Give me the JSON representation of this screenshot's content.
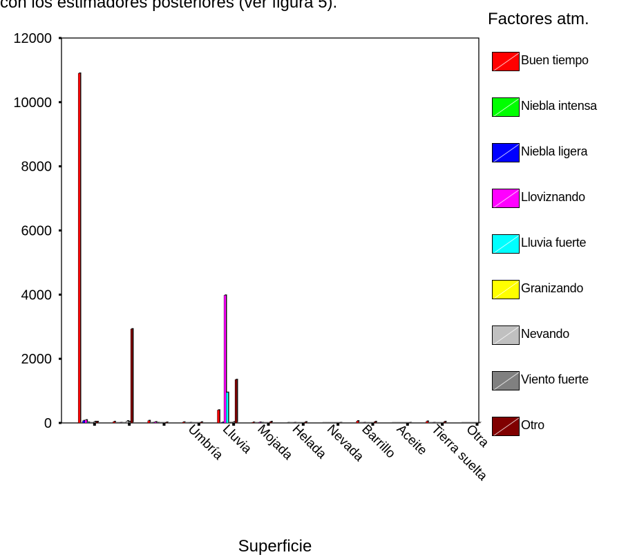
{
  "header": {
    "cut_text": "con los estimadores posteriores (ver figura 5)."
  },
  "legend": {
    "title": "Factores atm.",
    "items": [
      {
        "label": "Buen tiempo",
        "color": "#ff0000"
      },
      {
        "label": "Niebla intensa",
        "color": "#00ff00"
      },
      {
        "label": "Niebla ligera",
        "color": "#0000ff"
      },
      {
        "label": "Lloviznando",
        "color": "#ff00ff"
      },
      {
        "label": "Lluvia fuerte",
        "color": "#00ffff"
      },
      {
        "label": "Granizando",
        "color": "#ffff00"
      },
      {
        "label": "Nevando",
        "color": "#c0c0c0"
      },
      {
        "label": "Viento fuerte",
        "color": "#808080"
      },
      {
        "label": "Otro",
        "color": "#800000"
      }
    ]
  },
  "chart_data": {
    "type": "bar",
    "title": "",
    "xlabel": "Superficie",
    "ylabel": "",
    "ylim": [
      0,
      12000
    ],
    "y_ticks": [
      0,
      2000,
      4000,
      6000,
      8000,
      10000,
      12000
    ],
    "grid": false,
    "legend_placement": "right",
    "categories": [
      "",
      "",
      "",
      "Umbría",
      "Lluvia",
      "Mojada",
      "Helada",
      "Nevada",
      "Barrillo",
      "Aceite",
      "Tierra suelta",
      "Otra"
    ],
    "series": [
      {
        "name": "Buen tiempo",
        "values": [
          10900,
          40,
          70,
          25,
          400,
          20,
          8,
          5,
          60,
          5,
          50,
          5
        ]
      },
      {
        "name": "Niebla intensa",
        "values": [
          5,
          5,
          5,
          5,
          5,
          5,
          5,
          5,
          5,
          5,
          5,
          5
        ]
      },
      {
        "name": "Niebla ligera",
        "values": [
          70,
          5,
          10,
          5,
          20,
          5,
          5,
          5,
          5,
          5,
          5,
          5
        ]
      },
      {
        "name": "Lloviznando",
        "values": [
          90,
          10,
          30,
          10,
          3980,
          20,
          10,
          5,
          10,
          5,
          10,
          5
        ]
      },
      {
        "name": "Lluvia fuerte",
        "values": [
          20,
          5,
          10,
          5,
          950,
          10,
          5,
          5,
          5,
          5,
          5,
          5
        ]
      },
      {
        "name": "Granizando",
        "values": [
          5,
          5,
          5,
          5,
          10,
          5,
          5,
          5,
          5,
          5,
          5,
          5
        ]
      },
      {
        "name": "Nevando",
        "values": [
          5,
          60,
          5,
          5,
          10,
          5,
          5,
          5,
          5,
          5,
          5,
          5
        ]
      },
      {
        "name": "Viento fuerte",
        "values": [
          40,
          40,
          5,
          5,
          30,
          5,
          5,
          5,
          5,
          5,
          5,
          5
        ]
      },
      {
        "name": "Otro",
        "values": [
          40,
          2930,
          20,
          25,
          1350,
          40,
          30,
          10,
          40,
          10,
          40,
          10
        ]
      }
    ]
  }
}
